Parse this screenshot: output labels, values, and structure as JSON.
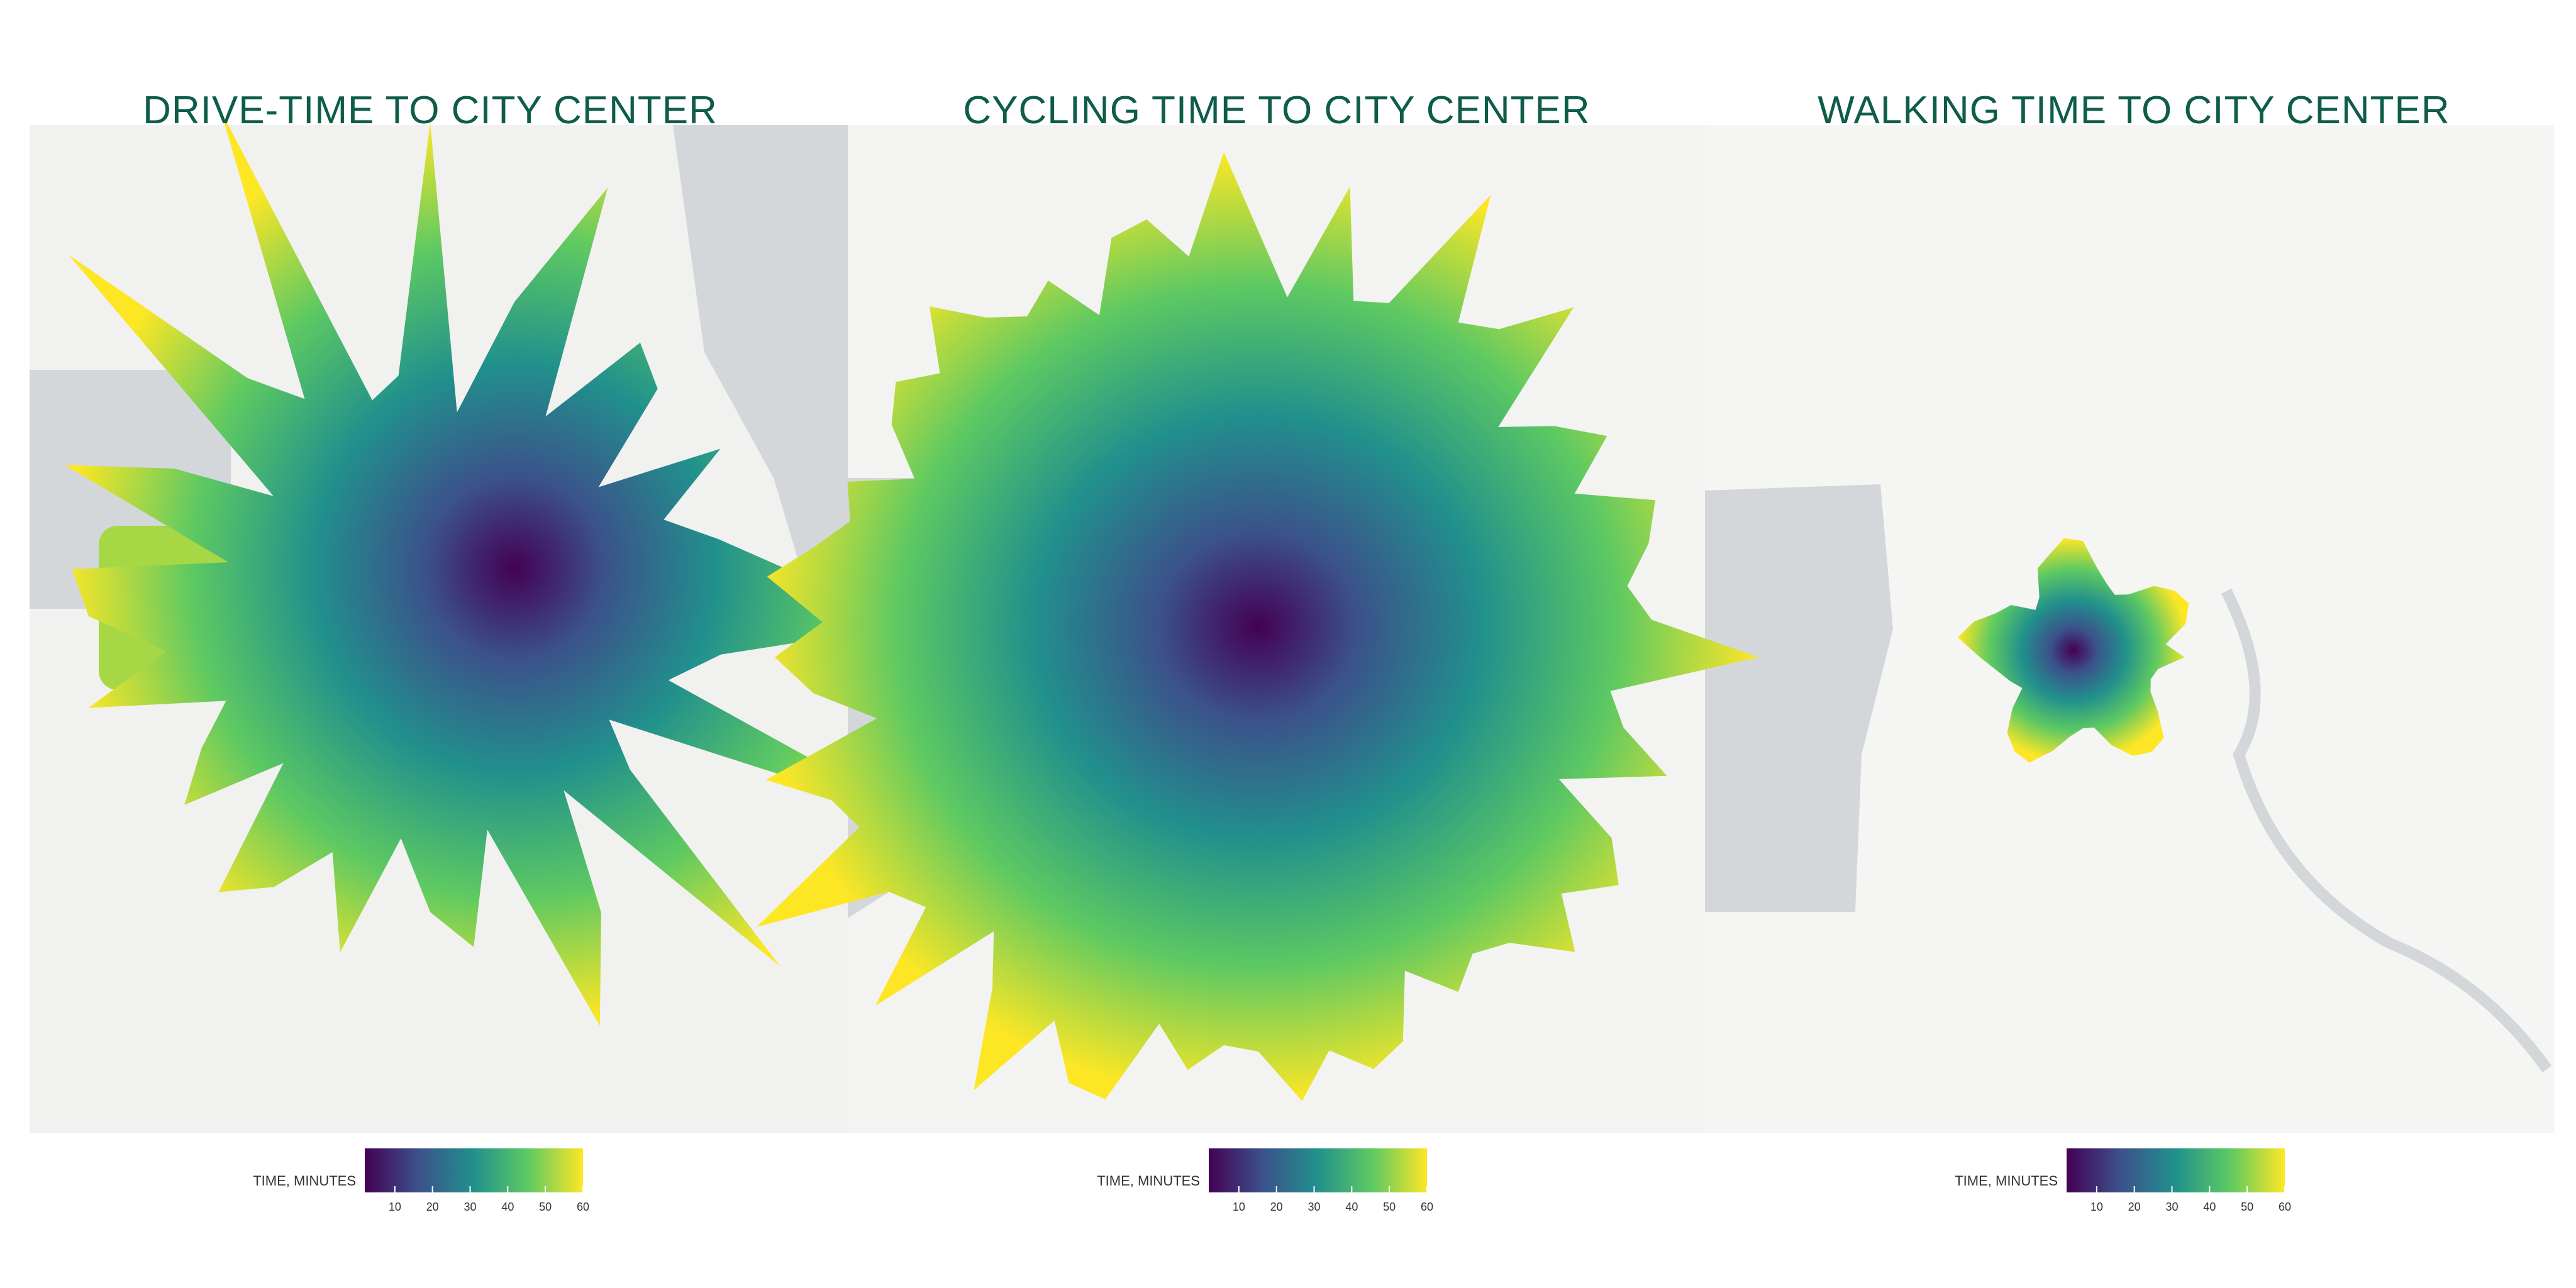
{
  "panels": [
    {
      "title": "DRIVE-TIME TO CITY CENTER",
      "legend": {
        "label": "TIME, MINUTES",
        "range": [
          2,
          60
        ],
        "ticks": [
          10,
          20,
          30,
          40,
          50,
          60
        ]
      }
    },
    {
      "title": "CYCLING TIME TO CITY CENTER",
      "legend": {
        "label": "TIME, MINUTES",
        "range": [
          2,
          60
        ],
        "ticks": [
          10,
          20,
          30,
          40,
          50,
          60
        ]
      }
    },
    {
      "title": "WALKING TIME TO CITY CENTER",
      "legend": {
        "label": "TIME, MINUTES",
        "range": [
          2,
          60
        ],
        "ticks": [
          10,
          20,
          30,
          40,
          50,
          60
        ]
      }
    }
  ]
}
